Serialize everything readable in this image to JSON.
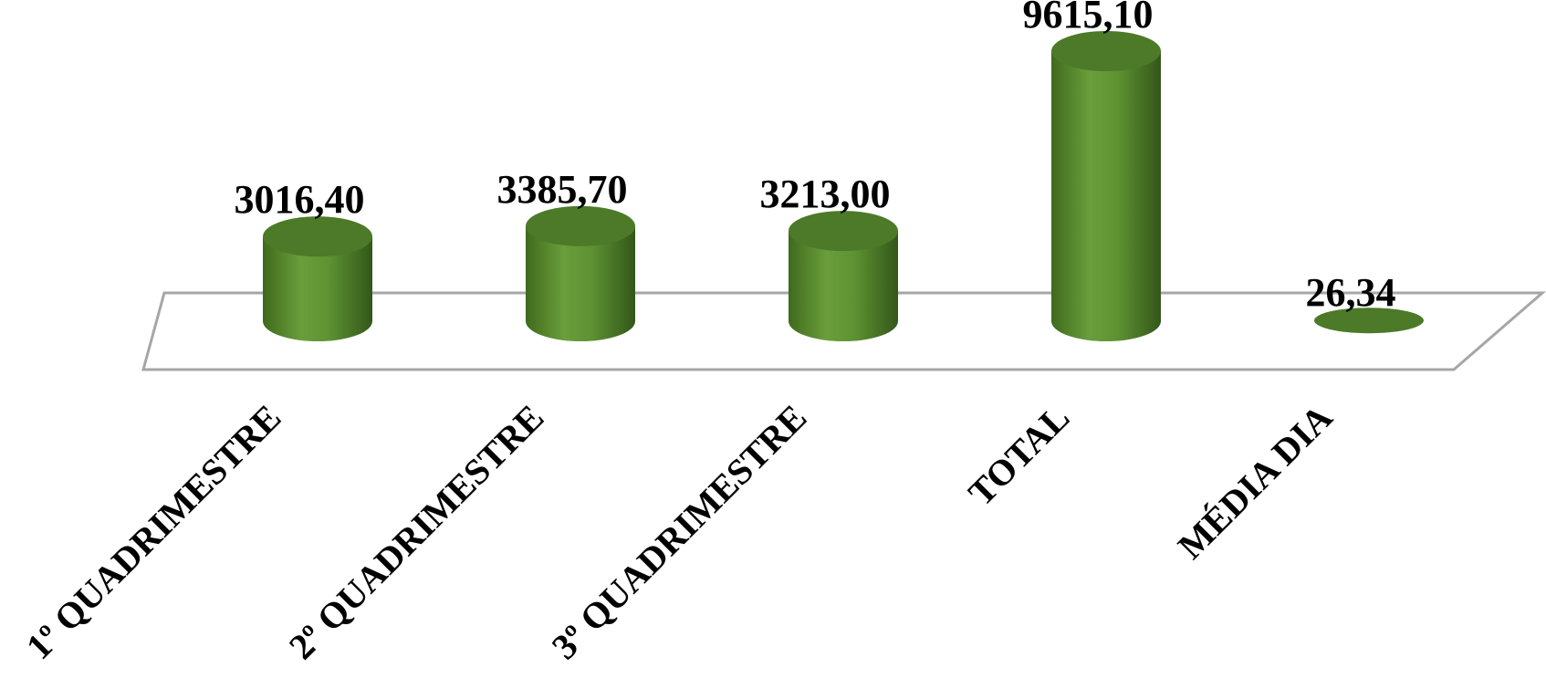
{
  "chart_data": {
    "type": "bar",
    "style": "3d-cylinder",
    "categories": [
      "1º QUADRIMESTRE",
      "2º QUADRIMESTRE",
      "3º QUADRIMESTRE",
      "TOTAL",
      "MÉDIA DIA"
    ],
    "values": [
      3016.4,
      3385.7,
      3213.0,
      9615.1,
      26.34
    ],
    "value_labels": [
      "3016,40",
      "3385,70",
      "3213,00",
      "9615,10",
      "26,34"
    ],
    "title": "",
    "xlabel": "",
    "ylabel": "",
    "ylim": [
      0,
      10000
    ],
    "grid": false,
    "legend": "none",
    "colors": {
      "bar_light": "#6a9e3c",
      "bar_dark": "#3f6a1c",
      "bar_top": "#4c7a28",
      "floor_stroke": "#a6a6a6"
    }
  }
}
